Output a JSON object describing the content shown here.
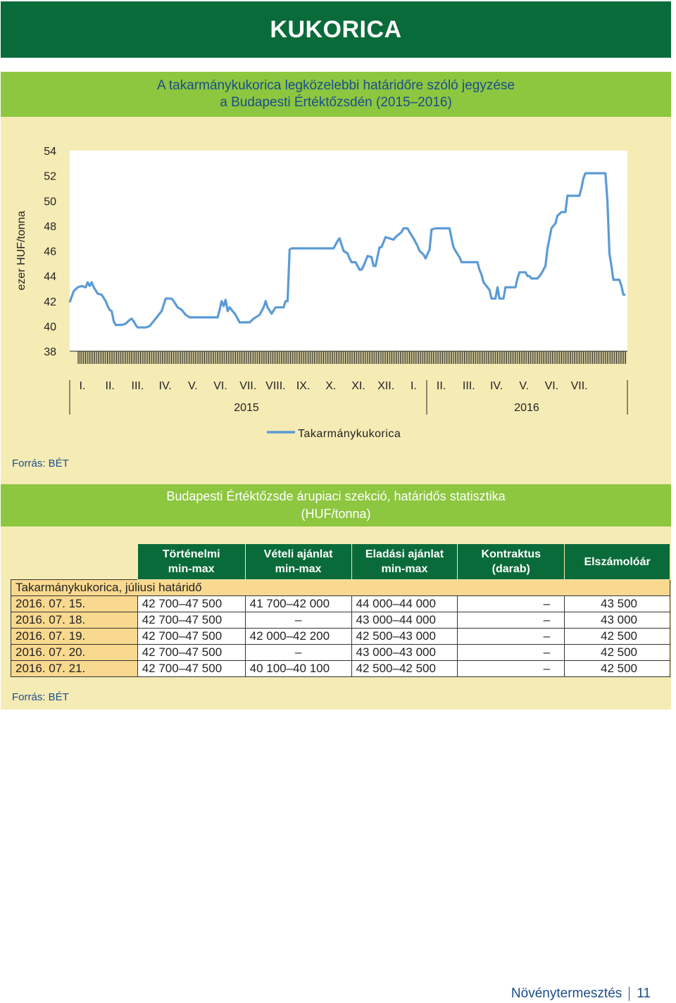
{
  "banner": {
    "title": "KUKORICA"
  },
  "chart_section": {
    "title_line1": "A takarmánykukorica legközelebbi határidőre szóló jegyzése",
    "title_line2": "a Budapesti Értéktőzsdén (2015–2016)",
    "source": "Forrás: BÉT"
  },
  "chart_data": {
    "type": "line",
    "ylabel": "ezer HUF/tonna",
    "ylim": [
      38,
      54
    ],
    "y_ticks": [
      "54",
      "52",
      "50",
      "48",
      "46",
      "44",
      "42",
      "40",
      "38"
    ],
    "month_labels": [
      "I.",
      "II.",
      "III.",
      "IV.",
      "V.",
      "VI.",
      "VII.",
      "VIII.",
      "IX.",
      "X.",
      "XI.",
      "XII.",
      "I.",
      "II.",
      "III.",
      "IV.",
      "V.",
      "VI.",
      "VII."
    ],
    "year_labels": [
      "2015",
      "2016"
    ],
    "legend": {
      "position": "bottom",
      "entries": [
        "Takarmánykukorica"
      ]
    },
    "color": "#5b9bd5",
    "series": [
      {
        "name": "Takarmánykukorica",
        "points": [
          [
            0,
            41.9
          ],
          [
            0.1,
            42.8
          ],
          [
            0.2,
            43.1
          ],
          [
            0.3,
            43.2
          ],
          [
            0.4,
            43.1
          ],
          [
            0.45,
            43.5
          ],
          [
            0.5,
            43.2
          ],
          [
            0.55,
            43.5
          ],
          [
            0.6,
            43.1
          ],
          [
            0.7,
            42.6
          ],
          [
            0.8,
            42.5
          ],
          [
            0.9,
            42.0
          ],
          [
            0.95,
            41.6
          ],
          [
            1.0,
            41.3
          ],
          [
            1.05,
            41.2
          ],
          [
            1.1,
            40.4
          ],
          [
            1.15,
            40.1
          ],
          [
            1.3,
            40.1
          ],
          [
            1.4,
            40.2
          ],
          [
            1.5,
            40.5
          ],
          [
            1.55,
            40.6
          ],
          [
            1.6,
            40.4
          ],
          [
            1.65,
            40.1
          ],
          [
            1.7,
            39.9
          ],
          [
            1.9,
            39.9
          ],
          [
            2.0,
            40.0
          ],
          [
            2.1,
            40.4
          ],
          [
            2.3,
            41.2
          ],
          [
            2.4,
            42.2
          ],
          [
            2.55,
            42.2
          ],
          [
            2.6,
            42.0
          ],
          [
            2.7,
            41.5
          ],
          [
            2.8,
            41.3
          ],
          [
            2.9,
            40.9
          ],
          [
            3.0,
            40.7
          ],
          [
            3.2,
            40.7
          ],
          [
            3.5,
            40.7
          ],
          [
            3.7,
            40.7
          ],
          [
            3.75,
            41.3
          ],
          [
            3.8,
            42.0
          ],
          [
            3.85,
            41.6
          ],
          [
            3.9,
            42.1
          ],
          [
            3.95,
            41.2
          ],
          [
            4.0,
            41.5
          ],
          [
            4.1,
            41.1
          ],
          [
            4.15,
            40.9
          ],
          [
            4.25,
            40.3
          ],
          [
            4.5,
            40.3
          ],
          [
            4.6,
            40.6
          ],
          [
            4.75,
            40.9
          ],
          [
            4.85,
            41.5
          ],
          [
            4.9,
            42.0
          ],
          [
            4.95,
            41.5
          ],
          [
            5.05,
            41.0
          ],
          [
            5.15,
            41.5
          ],
          [
            5.35,
            41.5
          ],
          [
            5.4,
            42.0
          ],
          [
            5.45,
            42.0
          ],
          [
            5.5,
            46.1
          ],
          [
            5.55,
            46.2
          ],
          [
            6.4,
            46.2
          ],
          [
            6.6,
            46.2
          ],
          [
            6.65,
            46.5
          ],
          [
            6.7,
            46.8
          ],
          [
            6.75,
            47.0
          ],
          [
            6.8,
            46.5
          ],
          [
            6.85,
            46.0
          ],
          [
            6.95,
            45.8
          ],
          [
            7.0,
            45.4
          ],
          [
            7.05,
            45.1
          ],
          [
            7.15,
            45.1
          ],
          [
            7.25,
            44.5
          ],
          [
            7.3,
            44.5
          ],
          [
            7.35,
            44.8
          ],
          [
            7.45,
            45.6
          ],
          [
            7.55,
            45.5
          ],
          [
            7.6,
            44.8
          ],
          [
            7.65,
            44.8
          ],
          [
            7.75,
            46.3
          ],
          [
            7.8,
            46.3
          ],
          [
            7.9,
            47.1
          ],
          [
            8.0,
            47.0
          ],
          [
            8.1,
            46.9
          ],
          [
            8.15,
            47.1
          ],
          [
            8.3,
            47.5
          ],
          [
            8.35,
            47.8
          ],
          [
            8.45,
            47.8
          ],
          [
            8.5,
            47.5
          ],
          [
            8.6,
            47.0
          ],
          [
            8.7,
            46.4
          ],
          [
            8.75,
            46.0
          ],
          [
            8.85,
            45.7
          ],
          [
            8.9,
            45.4
          ],
          [
            9.0,
            46.1
          ],
          [
            9.05,
            47.7
          ],
          [
            9.15,
            47.8
          ],
          [
            9.5,
            47.8
          ],
          [
            9.55,
            47.0
          ],
          [
            9.6,
            46.3
          ],
          [
            9.65,
            46.0
          ],
          [
            9.75,
            45.5
          ],
          [
            9.8,
            45.1
          ],
          [
            10.0,
            45.1
          ],
          [
            10.2,
            45.1
          ],
          [
            10.25,
            44.5
          ],
          [
            10.3,
            44.1
          ],
          [
            10.35,
            43.5
          ],
          [
            10.45,
            43.1
          ],
          [
            10.5,
            42.9
          ],
          [
            10.55,
            42.2
          ],
          [
            10.65,
            42.2
          ],
          [
            10.7,
            43.1
          ],
          [
            10.75,
            42.2
          ],
          [
            10.85,
            42.2
          ],
          [
            10.9,
            43.1
          ],
          [
            11.15,
            43.1
          ],
          [
            11.2,
            43.8
          ],
          [
            11.25,
            44.3
          ],
          [
            11.4,
            44.3
          ],
          [
            11.45,
            44.0
          ],
          [
            11.5,
            44.0
          ],
          [
            11.55,
            43.8
          ],
          [
            11.7,
            43.8
          ],
          [
            11.8,
            44.2
          ],
          [
            11.9,
            44.8
          ],
          [
            11.95,
            46.2
          ],
          [
            12.05,
            47.8
          ],
          [
            12.15,
            48.2
          ],
          [
            12.2,
            48.8
          ],
          [
            12.3,
            49.1
          ],
          [
            12.4,
            49.1
          ],
          [
            12.45,
            50.4
          ],
          [
            12.75,
            50.4
          ],
          [
            12.8,
            51.0
          ],
          [
            12.85,
            51.8
          ],
          [
            12.9,
            52.2
          ],
          [
            13.2,
            52.2
          ],
          [
            13.4,
            52.2
          ],
          [
            13.45,
            50.0
          ],
          [
            13.5,
            45.8
          ],
          [
            13.55,
            44.8
          ],
          [
            13.6,
            43.7
          ],
          [
            13.75,
            43.7
          ],
          [
            13.8,
            43.2
          ],
          [
            13.85,
            42.5
          ],
          [
            13.9,
            42.5
          ]
        ]
      }
    ]
  },
  "table_section": {
    "title_line1": "Budapesti Értéktőzsde árupiaci szekció, határidős statisztika",
    "title_line2": "(HUF/tonna)",
    "headers": [
      {
        "line1": "Történelmi",
        "line2": "min-max"
      },
      {
        "line1": "Vételi ajánlat",
        "line2": "min-max"
      },
      {
        "line1": "Eladási ajánlat",
        "line2": "min-max"
      },
      {
        "line1": "Kontraktus",
        "line2": "(darab)"
      },
      {
        "line1": "Elszámolóár",
        "line2": ""
      }
    ],
    "subheader": "Takarmánykukorica, júliusi határidő",
    "rows": [
      {
        "date": "2016. 07. 15.",
        "hist": "42 700–47 500",
        "bid": "41 700–42 000",
        "ask": "44 000–44 000",
        "contracts": "–",
        "settle": "43 500"
      },
      {
        "date": "2016. 07. 18.",
        "hist": "42 700–47 500",
        "bid": "–",
        "ask": "43 000–44 000",
        "contracts": "–",
        "settle": "43 000"
      },
      {
        "date": "2016. 07. 19.",
        "hist": "42 700–47 500",
        "bid": "42 000–42 200",
        "ask": "42 500–43 000",
        "contracts": "–",
        "settle": "42 500"
      },
      {
        "date": "2016. 07. 20.",
        "hist": "42 700–47 500",
        "bid": "–",
        "ask": "43 000–43 000",
        "contracts": "–",
        "settle": "42 500"
      },
      {
        "date": "2016. 07. 21.",
        "hist": "42 700–47 500",
        "bid": "40 100–40 100",
        "ask": "42 500–42 500",
        "contracts": "–",
        "settle": "42 500"
      }
    ],
    "source": "Forrás: BÉT"
  },
  "footer": {
    "section": "Növénytermesztés",
    "page": "11"
  }
}
